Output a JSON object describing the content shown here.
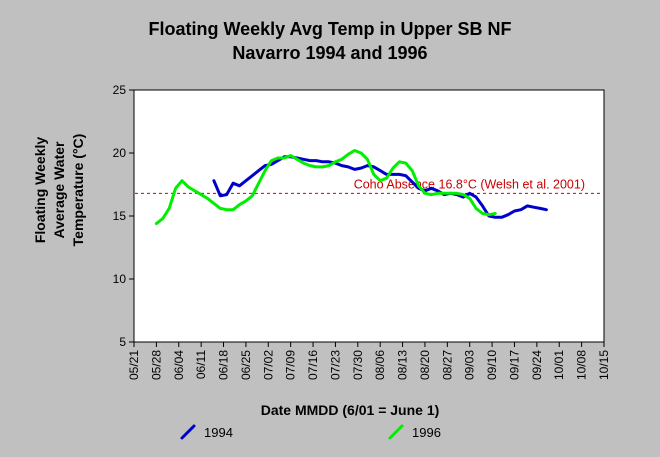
{
  "chart_data": {
    "type": "line",
    "title_lines": [
      "Floating Weekly Avg Temp in Upper SB NF",
      "Navarro 1994 and 1996"
    ],
    "ylabel_lines": [
      "Floating Weekly",
      "Average Water",
      "Temperature (°C)"
    ],
    "xlabel": "Date MMDD (6/01 = June 1)",
    "ylim": [
      5,
      25
    ],
    "yticks": [
      "5",
      "10",
      "15",
      "20",
      "25"
    ],
    "xticks": [
      "05/21",
      "05/28",
      "06/04",
      "06/11",
      "06/18",
      "06/25",
      "07/02",
      "07/09",
      "07/16",
      "07/23",
      "07/30",
      "08/06",
      "08/13",
      "08/20",
      "08/27",
      "09/03",
      "09/10",
      "09/17",
      "09/24",
      "10/01",
      "10/08",
      "10/15"
    ],
    "grid": false,
    "legend_position": "bottom",
    "reference_line": {
      "value": 16.8,
      "label": "Coho Absence 16.8°C (Welsh et al. 2001)",
      "color": "#cc0000"
    },
    "series": [
      {
        "name": "1994",
        "color": "#0000cc",
        "points": [
          [
            "06/15",
            17.8
          ],
          [
            "06/17",
            16.6
          ],
          [
            "06/19",
            16.7
          ],
          [
            "06/21",
            17.6
          ],
          [
            "06/23",
            17.4
          ],
          [
            "06/25",
            17.8
          ],
          [
            "06/27",
            18.2
          ],
          [
            "06/29",
            18.6
          ],
          [
            "07/01",
            19.0
          ],
          [
            "07/03",
            19.1
          ],
          [
            "07/05",
            19.4
          ],
          [
            "07/07",
            19.7
          ],
          [
            "07/09",
            19.7
          ],
          [
            "07/11",
            19.6
          ],
          [
            "07/13",
            19.5
          ],
          [
            "07/15",
            19.4
          ],
          [
            "07/17",
            19.4
          ],
          [
            "07/19",
            19.3
          ],
          [
            "07/21",
            19.3
          ],
          [
            "07/23",
            19.2
          ],
          [
            "07/25",
            19.0
          ],
          [
            "07/27",
            18.9
          ],
          [
            "07/29",
            18.7
          ],
          [
            "07/31",
            18.8
          ],
          [
            "08/02",
            19.0
          ],
          [
            "08/04",
            18.9
          ],
          [
            "08/06",
            18.6
          ],
          [
            "08/08",
            18.3
          ],
          [
            "08/10",
            18.3
          ],
          [
            "08/12",
            18.3
          ],
          [
            "08/14",
            18.2
          ],
          [
            "08/16",
            17.7
          ],
          [
            "08/18",
            17.2
          ],
          [
            "08/20",
            17.0
          ],
          [
            "08/22",
            17.2
          ],
          [
            "08/24",
            17.0
          ],
          [
            "08/26",
            16.7
          ],
          [
            "08/28",
            16.8
          ],
          [
            "08/30",
            16.7
          ],
          [
            "09/01",
            16.5
          ],
          [
            "09/03",
            16.8
          ],
          [
            "09/05",
            16.5
          ],
          [
            "09/07",
            15.8
          ],
          [
            "09/09",
            15.0
          ],
          [
            "09/11",
            14.9
          ],
          [
            "09/13",
            14.9
          ],
          [
            "09/15",
            15.1
          ],
          [
            "09/17",
            15.4
          ],
          [
            "09/19",
            15.5
          ],
          [
            "09/21",
            15.8
          ],
          [
            "09/23",
            15.7
          ],
          [
            "09/25",
            15.6
          ],
          [
            "09/27",
            15.5
          ]
        ]
      },
      {
        "name": "1996",
        "color": "#00ee00",
        "points": [
          [
            "05/28",
            14.4
          ],
          [
            "05/30",
            14.8
          ],
          [
            "06/01",
            15.6
          ],
          [
            "06/03",
            17.2
          ],
          [
            "06/05",
            17.8
          ],
          [
            "06/07",
            17.3
          ],
          [
            "06/09",
            17.0
          ],
          [
            "06/11",
            16.7
          ],
          [
            "06/13",
            16.4
          ],
          [
            "06/15",
            16.0
          ],
          [
            "06/17",
            15.6
          ],
          [
            "06/19",
            15.5
          ],
          [
            "06/21",
            15.5
          ],
          [
            "06/23",
            15.9
          ],
          [
            "06/25",
            16.2
          ],
          [
            "06/27",
            16.6
          ],
          [
            "06/29",
            17.6
          ],
          [
            "07/01",
            18.6
          ],
          [
            "07/03",
            19.4
          ],
          [
            "07/05",
            19.6
          ],
          [
            "07/07",
            19.6
          ],
          [
            "07/09",
            19.8
          ],
          [
            "07/11",
            19.5
          ],
          [
            "07/13",
            19.2
          ],
          [
            "07/15",
            19.0
          ],
          [
            "07/17",
            18.9
          ],
          [
            "07/19",
            18.9
          ],
          [
            "07/21",
            19.0
          ],
          [
            "07/23",
            19.3
          ],
          [
            "07/25",
            19.5
          ],
          [
            "07/27",
            19.9
          ],
          [
            "07/29",
            20.2
          ],
          [
            "07/31",
            20.0
          ],
          [
            "08/02",
            19.5
          ],
          [
            "08/04",
            18.3
          ],
          [
            "08/06",
            17.8
          ],
          [
            "08/08",
            18.0
          ],
          [
            "08/10",
            18.8
          ],
          [
            "08/12",
            19.3
          ],
          [
            "08/14",
            19.2
          ],
          [
            "08/16",
            18.6
          ],
          [
            "08/18",
            17.4
          ],
          [
            "08/20",
            16.8
          ],
          [
            "08/22",
            16.7
          ],
          [
            "08/24",
            16.8
          ],
          [
            "08/26",
            16.8
          ],
          [
            "08/28",
            16.8
          ],
          [
            "08/30",
            16.8
          ],
          [
            "09/01",
            16.7
          ],
          [
            "09/03",
            16.4
          ],
          [
            "09/05",
            15.6
          ],
          [
            "09/07",
            15.2
          ],
          [
            "09/09",
            15.1
          ],
          [
            "09/11",
            15.2
          ]
        ]
      }
    ]
  }
}
